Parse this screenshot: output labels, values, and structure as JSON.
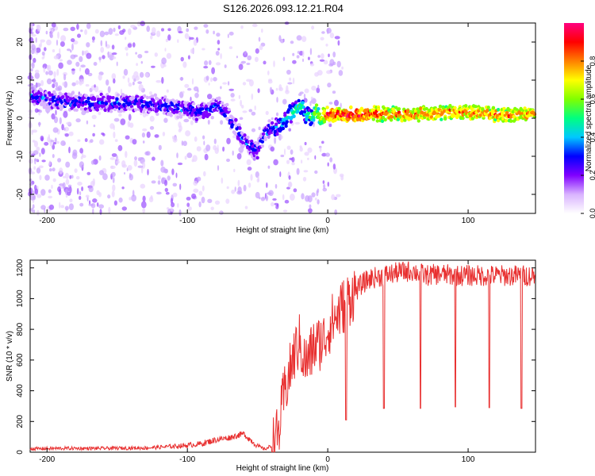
{
  "title": "S126.2026.093.12.21.R04",
  "chart_data": [
    {
      "type": "heatmap",
      "title": "S126.2026.093.12.21.R04",
      "xlabel": "Height of straight line (km)",
      "ylabel": "Frequency (Hz)",
      "xlim": [
        -212,
        148
      ],
      "ylim": [
        -25,
        25
      ],
      "xticks": [
        -200,
        -100,
        0,
        100
      ],
      "yticks": [
        -20,
        -10,
        0,
        10,
        20
      ],
      "colorbar": {
        "label": "Normalized spectral amplitude",
        "range": [
          0,
          1
        ],
        "ticks": [
          "0.0",
          "0.2",
          "0.4",
          "0.6",
          "0.8"
        ],
        "tick_values": [
          0,
          0.2,
          0.4,
          0.6,
          0.8
        ],
        "colors": [
          "#ffffff",
          "#d9b3ff",
          "#8000ff",
          "#0000ff",
          "#00c8ff",
          "#00ff80",
          "#80ff00",
          "#ffff00",
          "#ff8000",
          "#ff0000",
          "#ff0080"
        ]
      },
      "ridge": {
        "x": [
          -210,
          -190,
          -170,
          -150,
          -130,
          -110,
          -95,
          -85,
          -80,
          -72,
          -66,
          -60,
          -55,
          -50,
          -46,
          -42,
          -38,
          -34,
          -30,
          -26,
          -22,
          -18,
          -16,
          -12,
          -8,
          -5,
          0,
          20,
          40,
          60,
          80,
          100,
          120,
          148
        ],
        "freq_hz": [
          5.5,
          4.5,
          4.0,
          4.0,
          4.0,
          3.0,
          2.0,
          1.5,
          3.5,
          1.5,
          -2.0,
          -5.5,
          -7.5,
          -8.5,
          -5.0,
          -3.0,
          -3.0,
          -2.0,
          -0.5,
          1.5,
          2.5,
          3.0,
          1.0,
          0.5,
          2.0,
          0.5,
          1.0,
          1.0,
          1.0,
          1.0,
          1.5,
          1.5,
          1.0,
          1.0
        ],
        "amplitude": [
          0.4,
          0.4,
          0.4,
          0.4,
          0.4,
          0.4,
          0.4,
          0.4,
          0.4,
          0.4,
          0.4,
          0.4,
          0.4,
          0.4,
          0.4,
          0.4,
          0.4,
          0.5,
          0.5,
          0.6,
          0.6,
          0.6,
          0.5,
          0.6,
          0.7,
          0.7,
          1.0,
          1.0,
          0.9,
          0.9,
          0.9,
          0.9,
          0.9,
          0.9
        ]
      }
    },
    {
      "type": "line",
      "xlabel": "Height of straight line (km)",
      "ylabel": "SNR (10 * v/v)",
      "xlim": [
        -212,
        148
      ],
      "ylim": [
        0,
        1250
      ],
      "xticks": [
        -200,
        -100,
        0,
        100
      ],
      "yticks": [
        0,
        200,
        400,
        600,
        800,
        1000,
        1200
      ],
      "color": "#e83030",
      "x": [
        -212,
        -190,
        -160,
        -130,
        -115,
        -100,
        -90,
        -80,
        -70,
        -60,
        -50,
        -45,
        -40,
        -35,
        -32,
        -30,
        -27,
        -25,
        -22,
        -20,
        -17,
        -15,
        -12,
        -10,
        -7,
        -5,
        -2,
        0,
        3,
        6,
        10,
        15,
        20,
        25,
        30,
        40,
        50,
        60,
        70,
        80,
        90,
        100,
        110,
        120,
        130,
        148
      ],
      "y": [
        22,
        25,
        25,
        28,
        35,
        45,
        55,
        80,
        95,
        120,
        40,
        20,
        40,
        120,
        330,
        420,
        520,
        600,
        680,
        720,
        600,
        580,
        640,
        690,
        700,
        720,
        740,
        800,
        850,
        880,
        940,
        1000,
        1050,
        1100,
        1130,
        1150,
        1170,
        1180,
        1150,
        1160,
        1150,
        1150,
        1150,
        1150,
        1150,
        1150
      ],
      "dips": [
        {
          "x": 13,
          "y": 210
        },
        {
          "x": 40,
          "y": 285
        },
        {
          "x": 66,
          "y": 285
        },
        {
          "x": 91,
          "y": 295
        },
        {
          "x": 115,
          "y": 290
        },
        {
          "x": 138,
          "y": 285
        }
      ]
    }
  ]
}
